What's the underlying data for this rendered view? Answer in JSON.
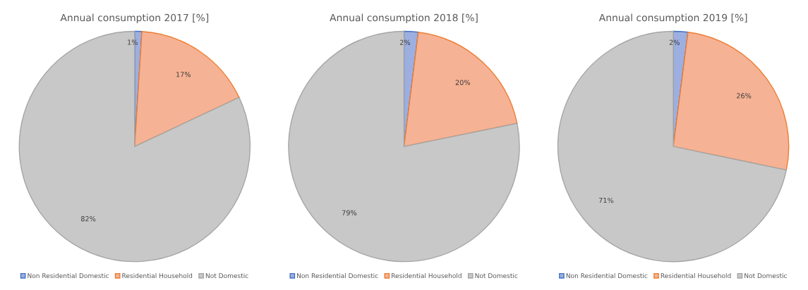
{
  "chart_data": [
    {
      "type": "pie",
      "title": "Annual consumption 2017 [%]",
      "categories": [
        "Non Residential Domestic",
        "Residential Household",
        "Not Domestic"
      ],
      "values": [
        1,
        17,
        82
      ],
      "value_labels": [
        "1%",
        "17%",
        "82%"
      ],
      "colors": [
        "#9dafe0",
        "#f6b294",
        "#c8c8c8"
      ],
      "legend": "bottom"
    },
    {
      "type": "pie",
      "title": "Annual consumption 2018 [%]",
      "categories": [
        "Non Residential Domestic",
        "Residential Household",
        "Not Domestic"
      ],
      "values": [
        2,
        20,
        79
      ],
      "value_labels": [
        "2%",
        "20%",
        "79%"
      ],
      "colors": [
        "#9dafe0",
        "#f6b294",
        "#c8c8c8"
      ],
      "legend": "bottom"
    },
    {
      "type": "pie",
      "title": "Annual consumption 2019 [%]",
      "categories": [
        "Non Residential Domestic",
        "Residential Household",
        "Not Domestic"
      ],
      "values": [
        2,
        26,
        71
      ],
      "value_labels": [
        "2%",
        "26%",
        "71%"
      ],
      "colors": [
        "#9dafe0",
        "#f6b294",
        "#c8c8c8"
      ],
      "legend": "bottom"
    }
  ]
}
